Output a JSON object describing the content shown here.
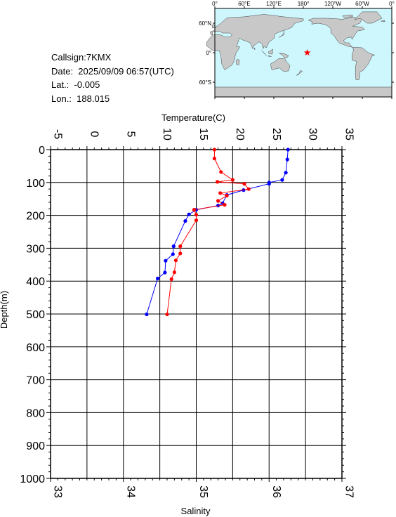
{
  "info": {
    "callsign": "Callsign:7KMX",
    "date": "Date:  2025/09/09 06:57(UTC)",
    "lat": "Lat.:  -0.005",
    "lon": "Lon.:  188.015"
  },
  "map": {
    "lon_labels": [
      "0°",
      "60°E",
      "120°E",
      "180°",
      "120°W",
      "60°W",
      "0°"
    ],
    "lat_labels": [
      "60°N",
      "0°",
      "60°S"
    ],
    "ocean_color": "#cdf6fd",
    "land_color": "#c8c8c8",
    "marker_color": "#ff0000",
    "marker": {
      "lon": 188.015,
      "lat": -0.005
    },
    "marker_icon": "star-icon"
  },
  "chart_data": {
    "type": "line",
    "y_axis": {
      "label": "Depth(m)",
      "range": [
        0,
        1000
      ],
      "ticks": [
        0,
        100,
        200,
        300,
        400,
        500,
        600,
        700,
        800,
        900,
        1000
      ],
      "inverted": true
    },
    "x_top": {
      "label": "Temperature(C)",
      "range": [
        -5,
        35
      ],
      "ticks": [
        -5,
        0,
        5,
        10,
        15,
        20,
        25,
        30,
        35
      ]
    },
    "x_bottom": {
      "label": "Salinity",
      "range": [
        33,
        37
      ],
      "ticks": [
        33,
        34,
        35,
        36,
        37
      ]
    },
    "grid": true,
    "series": [
      {
        "variable": "temperature",
        "axis": "top",
        "color": "#0000ff",
        "points": [
          {
            "depth": 0,
            "value": 27.6
          },
          {
            "depth": 30,
            "value": 27.5
          },
          {
            "depth": 70,
            "value": 27.3
          },
          {
            "depth": 92,
            "value": 26.8
          },
          {
            "depth": 100,
            "value": 25.0
          },
          {
            "depth": 104,
            "value": 25.0
          },
          {
            "depth": 123,
            "value": 21.5
          },
          {
            "depth": 138,
            "value": 19.2
          },
          {
            "depth": 163,
            "value": 18.6
          },
          {
            "depth": 170,
            "value": 18.0
          },
          {
            "depth": 183,
            "value": 15.0
          },
          {
            "depth": 197,
            "value": 14.0
          },
          {
            "depth": 217,
            "value": 13.5
          },
          {
            "depth": 294,
            "value": 11.9
          },
          {
            "depth": 318,
            "value": 11.8
          },
          {
            "depth": 338,
            "value": 10.8
          },
          {
            "depth": 374,
            "value": 10.7
          },
          {
            "depth": 392,
            "value": 9.7
          },
          {
            "depth": 501,
            "value": 8.2
          }
        ]
      },
      {
        "variable": "salinity",
        "axis": "bottom",
        "color": "#ff0000",
        "points": [
          {
            "depth": 0,
            "value": 35.25
          },
          {
            "depth": 27,
            "value": 35.25
          },
          {
            "depth": 68,
            "value": 35.34
          },
          {
            "depth": 92,
            "value": 35.5
          },
          {
            "depth": 98,
            "value": 35.29
          },
          {
            "depth": 104,
            "value": 35.66
          },
          {
            "depth": 120,
            "value": 35.72
          },
          {
            "depth": 132,
            "value": 35.33
          },
          {
            "depth": 140,
            "value": 35.42
          },
          {
            "depth": 156,
            "value": 35.3
          },
          {
            "depth": 168,
            "value": 35.39
          },
          {
            "depth": 183,
            "value": 34.97
          },
          {
            "depth": 198,
            "value": 35.0
          },
          {
            "depth": 215,
            "value": 35.0
          },
          {
            "depth": 294,
            "value": 34.78
          },
          {
            "depth": 316,
            "value": 34.78
          },
          {
            "depth": 337,
            "value": 34.72
          },
          {
            "depth": 373,
            "value": 34.7
          },
          {
            "depth": 394,
            "value": 34.66
          },
          {
            "depth": 501,
            "value": 34.6
          }
        ]
      }
    ]
  }
}
